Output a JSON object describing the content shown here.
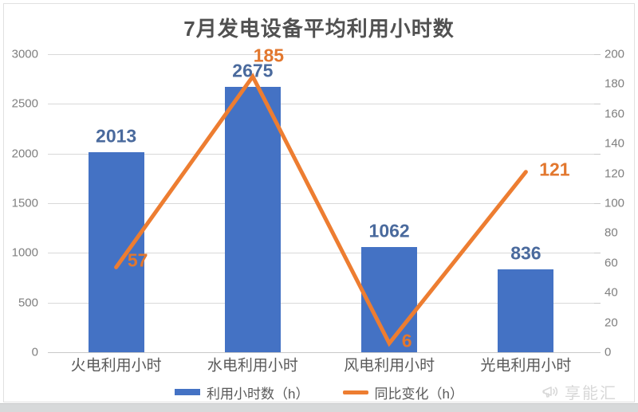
{
  "title": "7月发电设备平均利用小时数",
  "chart_data": {
    "type": "bar",
    "subtype": "bar+line combo, dual axis",
    "categories": [
      "火电利用小时",
      "水电利用小时",
      "风电利用小时",
      "光电利用小时"
    ],
    "series": [
      {
        "name": "利用小时数（h）",
        "type": "bar",
        "axis": "left",
        "values": [
          2013,
          2675,
          1062,
          836
        ],
        "color": "#4472c4"
      },
      {
        "name": "同比变化（h）",
        "type": "line",
        "axis": "right",
        "values": [
          57,
          185,
          6,
          121
        ],
        "color": "#ed7d31"
      }
    ],
    "axes": {
      "left": {
        "min": 0,
        "max": 3000,
        "step": 500,
        "ticks": [
          "3000",
          "2500",
          "2000",
          "1500",
          "1000",
          "500",
          "0"
        ]
      },
      "right": {
        "min": 0,
        "max": 200,
        "step": 20,
        "ticks": [
          "200",
          "180",
          "160",
          "140",
          "120",
          "100",
          "80",
          "60",
          "40",
          "20",
          "0"
        ]
      }
    },
    "grid": true,
    "legend_position": "bottom"
  },
  "watermark": {
    "text": "享能汇",
    "icon": "megaphone-icon"
  },
  "colors": {
    "bar": "#4472c4",
    "line": "#ed7d31",
    "bar_label": "#4a6a9d",
    "line_label": "#e2772e",
    "grid": "#d9d9d9",
    "axis_text": "#7f7f7f",
    "category_text": "#595959",
    "title_text": "#515151",
    "background": "#ffffff",
    "bottom_band": "#d7d9da",
    "watermark": "#d8d8d8"
  }
}
